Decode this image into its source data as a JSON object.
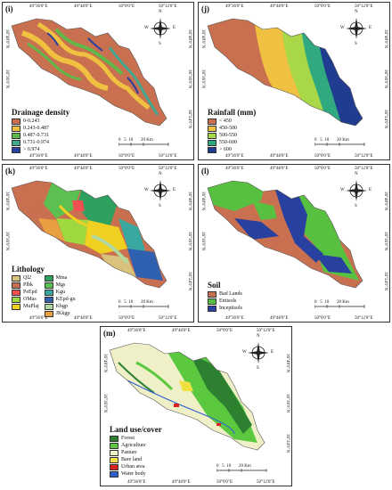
{
  "panels": [
    {
      "id": "i",
      "label": "(i)",
      "legend_title": "Drainage density",
      "legend_items": [
        {
          "label": "0-0.243",
          "color": "#c8704f"
        },
        {
          "label": "0.243-0.487",
          "color": "#f0c040"
        },
        {
          "label": "0.487-0.731",
          "color": "#60b848"
        },
        {
          "label": "0.731-0.974",
          "color": "#40a890"
        },
        {
          "label": "> 0.974",
          "color": "#2840a0"
        }
      ]
    },
    {
      "id": "j",
      "label": "(j)",
      "legend_title": "Rainfall (mm)",
      "legend_items": [
        {
          "label": "< 450",
          "color": "#c8704f"
        },
        {
          "label": "450-500",
          "color": "#f0c040"
        },
        {
          "label": "500-550",
          "color": "#a8d848"
        },
        {
          "label": "550-600",
          "color": "#30a880"
        },
        {
          "label": "> 600",
          "color": "#203c90"
        }
      ]
    },
    {
      "id": "k",
      "label": "(k)",
      "legend_title": "Lithology",
      "legend_items": [
        {
          "label": "Ql2",
          "color": "#d9c27c"
        },
        {
          "label": "Plbk",
          "color": "#c8704f"
        },
        {
          "label": "PeEpd",
          "color": "#f05050"
        },
        {
          "label": "OMas",
          "color": "#a0d840"
        },
        {
          "label": "MuPlaj",
          "color": "#f0d020"
        },
        {
          "label": "Mma",
          "color": "#2ea060"
        },
        {
          "label": "Mgs",
          "color": "#5cc050"
        },
        {
          "label": "Kgu",
          "color": "#38a8a0"
        },
        {
          "label": "KEpd-gu",
          "color": "#3060b0"
        },
        {
          "label": "Kbgp",
          "color": "#b0d8a0"
        },
        {
          "label": "JKkgp",
          "color": "#e8a040"
        }
      ]
    },
    {
      "id": "l",
      "label": "(l)",
      "legend_title": "Soil",
      "legend_items": [
        {
          "label": "Bad Lands",
          "color": "#c8704f"
        },
        {
          "label": "Entisols",
          "color": "#58c040"
        },
        {
          "label": "Inceptisols",
          "color": "#2840a0"
        }
      ]
    },
    {
      "id": "m",
      "label": "(m)",
      "legend_title": "Land use/cover",
      "legend_items": [
        {
          "label": "Forest",
          "color": "#2c8030"
        },
        {
          "label": "Agriculture",
          "color": "#5cc840"
        },
        {
          "label": "Pasture",
          "color": "#f0f0c8"
        },
        {
          "label": "Bare land",
          "color": "#f0e040"
        },
        {
          "label": "Urban area",
          "color": "#e02020"
        },
        {
          "label": "Water body",
          "color": "#3060d0"
        }
      ]
    }
  ],
  "coords": {
    "top": [
      "49°36'0\"E",
      "49°48'0\"E",
      "50°0'0\"E",
      "50°12'0\"E"
    ],
    "side": [
      "36°48'0\"N",
      "36°36'0\"N",
      "36°24'0\"N"
    ]
  },
  "scale": {
    "ticks": [
      "0",
      "5",
      "10",
      "20"
    ],
    "unit": "Km"
  },
  "north": {
    "n": "N",
    "s": "S",
    "e": "E",
    "w": "W"
  }
}
